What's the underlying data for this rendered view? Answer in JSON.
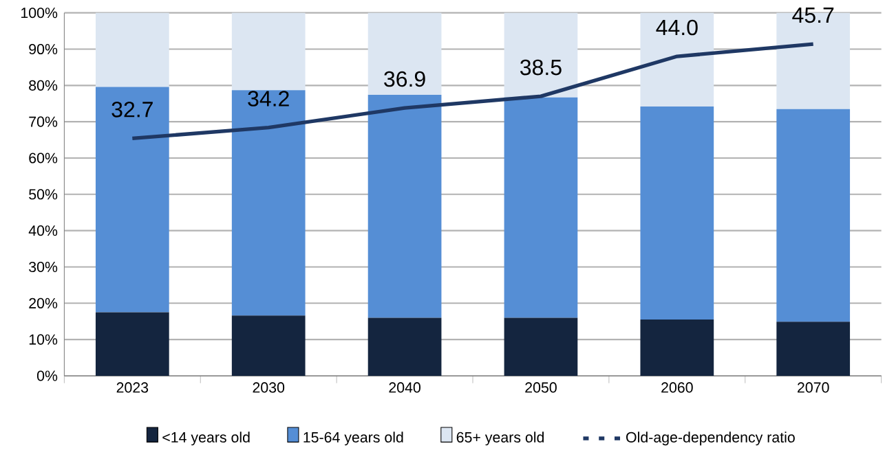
{
  "chart_data": {
    "type": "bar",
    "stacked": true,
    "categories": [
      "2023",
      "2030",
      "2040",
      "2050",
      "2060",
      "2070"
    ],
    "series": [
      {
        "name": "<14 years old",
        "color": "#14253f",
        "values": [
          17.5,
          16.6,
          16.0,
          16.0,
          15.5,
          14.9
        ]
      },
      {
        "name": "15-64 years old",
        "color": "#558ed5",
        "values": [
          62.1,
          62.1,
          61.4,
          60.7,
          58.7,
          58.6
        ]
      },
      {
        "name": "65+ years old",
        "color": "#dce6f2",
        "values": [
          20.4,
          21.3,
          22.6,
          23.3,
          25.8,
          26.5
        ]
      },
      {
        "name": "Old-age-dependency ratio",
        "type": "line",
        "axis": "y2",
        "color": "#1f3864",
        "values": [
          32.7,
          34.2,
          36.9,
          38.5,
          44.0,
          45.7
        ],
        "value_labels": [
          "32.7",
          "34.2",
          "36.9",
          "38.5",
          "44.0",
          "45.7"
        ]
      }
    ],
    "ylim": [
      0,
      100
    ],
    "yticks": [
      {
        "value": 0,
        "label": "0%"
      },
      {
        "value": 10,
        "label": "10%"
      },
      {
        "value": 20,
        "label": "20%"
      },
      {
        "value": 30,
        "label": "30%"
      },
      {
        "value": 40,
        "label": "40%"
      },
      {
        "value": 50,
        "label": "50%"
      },
      {
        "value": 60,
        "label": "60%"
      },
      {
        "value": 70,
        "label": "70%"
      },
      {
        "value": 80,
        "label": "80%"
      },
      {
        "value": 90,
        "label": "90%"
      },
      {
        "value": 100,
        "label": "100%"
      }
    ],
    "y2lim": [
      0,
      50
    ],
    "grid": "y",
    "legend": "bottom"
  }
}
